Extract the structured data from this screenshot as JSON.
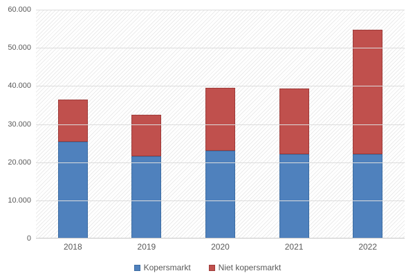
{
  "chart_data": {
    "type": "bar",
    "stacked": true,
    "title": "",
    "xlabel": "",
    "ylabel": "",
    "categories": [
      "2018",
      "2019",
      "2020",
      "2021",
      "2022"
    ],
    "series": [
      {
        "name": "Kopersmarkt",
        "color": "#4f81bd",
        "border_color": "#3d6da3",
        "values": [
          25400,
          21600,
          23100,
          22100,
          22200
        ]
      },
      {
        "name": "Niet kopersmarkt",
        "color": "#c0504d",
        "border_color": "#9e3b39",
        "values": [
          11100,
          10800,
          16400,
          17200,
          32600
        ]
      }
    ],
    "totals": [
      36500,
      32400,
      39500,
      39300,
      54800
    ],
    "ylim": [
      0,
      60000
    ],
    "ytick_step": 10000,
    "ytick_labels": [
      "0",
      "10.000",
      "20.000",
      "30.000",
      "40.000",
      "50.000",
      "60.000"
    ],
    "grid": true,
    "plot_background": "hatched-diagonal",
    "legend_position": "bottom"
  },
  "colors": {
    "kopersmarkt": "#4f81bd",
    "niet_kopersmarkt": "#c0504d",
    "gridline": "#dcdcdc",
    "axis_text": "#595959",
    "hatch_line": "#ebebeb",
    "background": "#ffffff"
  }
}
